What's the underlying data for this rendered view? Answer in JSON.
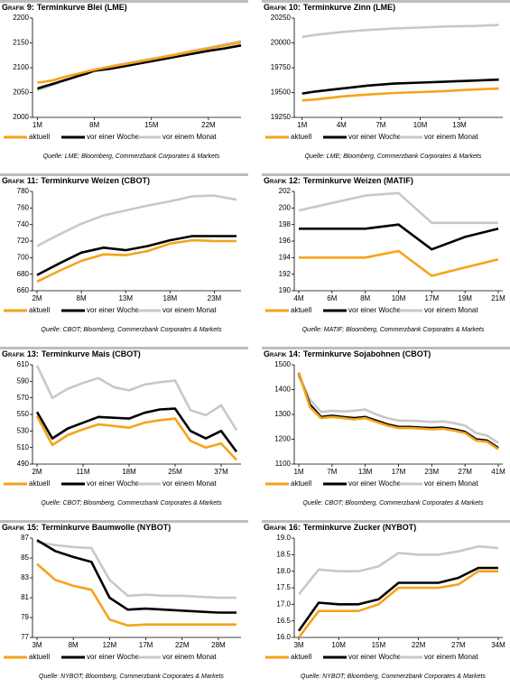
{
  "chart_data": [
    {
      "type": "line",
      "label": "Grafik 9:",
      "title": "Terminkurve Blei (LME)",
      "source": "Quelle: LME; Bloomberg, Commerzbank Corporates & Markets",
      "x": [
        1,
        2,
        3,
        4,
        5,
        6,
        7,
        8,
        9,
        10,
        12,
        14,
        16,
        18,
        20,
        22,
        24,
        26
      ],
      "xlim": [
        0.4,
        26
      ],
      "xticks": [
        {
          "value": 1,
          "label": "1M"
        },
        {
          "value": 8,
          "label": "8M"
        },
        {
          "value": 15,
          "label": "15M"
        },
        {
          "value": 22,
          "label": "22M"
        }
      ],
      "ylim": [
        2000,
        2200
      ],
      "yticks": [
        2000,
        2050,
        2100,
        2150,
        2200
      ],
      "series": [
        {
          "name": "aktuell",
          "color": "#f5a31a",
          "values": [
            2070,
            2072,
            2075,
            2080,
            2084,
            2088,
            2092,
            2096,
            2099,
            2102,
            2108,
            2114,
            2120,
            2126,
            2133,
            2139,
            2145,
            2151
          ]
        },
        {
          "name": "vor einer Woche",
          "color": "#000000",
          "values": [
            2058,
            2063,
            2068,
            2073,
            2078,
            2083,
            2088,
            2094,
            2096,
            2098,
            2104,
            2110,
            2116,
            2122,
            2128,
            2134,
            2139,
            2145
          ]
        },
        {
          "name": "vor einem Monat",
          "color": "#c8c8c8",
          "values": [
            2055,
            2060,
            2066,
            2072,
            2078,
            2084,
            2090,
            2095,
            2099,
            2103,
            2109,
            2115,
            2121,
            2127,
            2134,
            2140,
            2147,
            2154
          ]
        }
      ]
    },
    {
      "type": "line",
      "label": "Grafik 10:",
      "title": "Terminkurve Zinn (LME)",
      "source": "Quelle: LME; Bloomberg, Commerzbank Corporates & Markets",
      "x": [
        1,
        2,
        4,
        6,
        8,
        10,
        12,
        14,
        16
      ],
      "xlim": [
        0.4,
        16.3
      ],
      "xticks": [
        {
          "value": 1,
          "label": "1M"
        },
        {
          "value": 4,
          "label": "4M"
        },
        {
          "value": 7,
          "label": "7M"
        },
        {
          "value": 10,
          "label": "10M"
        },
        {
          "value": 13,
          "label": "13M"
        }
      ],
      "ylim": [
        19250,
        20250
      ],
      "yticks": [
        19250,
        19500,
        19750,
        20000,
        20250
      ],
      "series": [
        {
          "name": "aktuell",
          "color": "#f5a31a",
          "values": [
            19420,
            19430,
            19460,
            19480,
            19495,
            19505,
            19515,
            19530,
            19540
          ]
        },
        {
          "name": "vor einer Woche",
          "color": "#000000",
          "values": [
            19490,
            19510,
            19540,
            19570,
            19590,
            19600,
            19610,
            19620,
            19630
          ]
        },
        {
          "name": "vor einem Monat",
          "color": "#c8c8c8",
          "values": [
            20060,
            20080,
            20110,
            20130,
            20145,
            20155,
            20165,
            20170,
            20180
          ]
        }
      ]
    },
    {
      "type": "line",
      "label": "Grafik 11:",
      "title": "Terminkurve Weizen (CBOT)",
      "source": "Quelle: CBOT; Bloomberg, Commerzbank Corporates & Markets",
      "categories": [
        "2M",
        null,
        "8M",
        null,
        "13M",
        null,
        "18M",
        null,
        "23M",
        null
      ],
      "ylim": [
        660,
        780
      ],
      "yticks": [
        660,
        680,
        700,
        720,
        740,
        760,
        780
      ],
      "series": [
        {
          "name": "aktuell",
          "color": "#f5a31a",
          "values": [
            671,
            684,
            696,
            704,
            703,
            708,
            717,
            721,
            720,
            720
          ]
        },
        {
          "name": "vor einer Woche",
          "color": "#000000",
          "values": [
            679,
            693,
            706,
            712,
            709,
            714,
            721,
            726,
            726,
            726
          ]
        },
        {
          "name": "vor einem Monat",
          "color": "#c8c8c8",
          "values": [
            714,
            728,
            741,
            751,
            757,
            763,
            768,
            774,
            775,
            770
          ]
        }
      ]
    },
    {
      "type": "line",
      "label": "Grafik 12:",
      "title": "Terminkurve Weizen (MATIF)",
      "source": "Quelle: MATIF; Bloomberg, Commerzbank Corporates & Markets",
      "categories": [
        "4M",
        "6M",
        "8M",
        "10M",
        "17M",
        "19M",
        "21M"
      ],
      "ylim": [
        190,
        202
      ],
      "yticks": [
        190,
        192,
        194,
        196,
        198,
        200,
        202
      ],
      "series": [
        {
          "name": "aktuell",
          "color": "#f5a31a",
          "values": [
            194,
            194,
            194,
            194.8,
            191.8,
            192.8,
            193.8
          ]
        },
        {
          "name": "vor einer Woche",
          "color": "#000000",
          "values": [
            197.5,
            197.5,
            197.5,
            198,
            195,
            196.5,
            197.5
          ]
        },
        {
          "name": "vor einem Monat",
          "color": "#c8c8c8",
          "values": [
            199.7,
            200.6,
            201.5,
            201.8,
            198.2,
            198.2,
            198.2
          ]
        }
      ]
    },
    {
      "type": "line",
      "label": "Grafik 13:",
      "title": "Terminkurve Mais (CBOT)",
      "source": "Quelle: CBOT; Bloomberg, Commerzbank Corporates & Markets",
      "categories": [
        "2M",
        null,
        null,
        "11M",
        null,
        null,
        "18M",
        null,
        null,
        "25M",
        null,
        null,
        "37M",
        null
      ],
      "ylim": [
        490,
        610
      ],
      "yticks": [
        490,
        510,
        530,
        550,
        570,
        590,
        610
      ],
      "series": [
        {
          "name": "aktuell",
          "color": "#f5a31a",
          "values": [
            548,
            513,
            525,
            532,
            538,
            536,
            534,
            540,
            543,
            545,
            518,
            510,
            515,
            495
          ]
        },
        {
          "name": "vor einer Woche",
          "color": "#000000",
          "values": [
            553,
            521,
            533,
            540,
            547,
            546,
            545,
            552,
            556,
            557,
            530,
            521,
            530,
            505
          ]
        },
        {
          "name": "vor einem Monat",
          "color": "#c8c8c8",
          "values": [
            609,
            570,
            581,
            588,
            594,
            583,
            579,
            586,
            589,
            591,
            555,
            549,
            561,
            531
          ]
        }
      ]
    },
    {
      "type": "line",
      "label": "Grafik 14:",
      "title": "Terminkurve Sojabohnen (CBOT)",
      "source": "Quelle: CBOT; Bloomberg, Commerzbank Corporates & Markets",
      "categories": [
        "1M",
        null,
        null,
        "7M",
        null,
        null,
        "13M",
        null,
        null,
        "17M",
        null,
        null,
        "23M",
        null,
        null,
        "27M",
        null,
        null,
        "41M"
      ],
      "ylim": [
        1100,
        1500
      ],
      "yticks": [
        1100,
        1200,
        1300,
        1400,
        1500
      ],
      "series": [
        {
          "name": "aktuell",
          "color": "#f5a31a",
          "values": [
            1470,
            1330,
            1285,
            1290,
            1285,
            1280,
            1285,
            1270,
            1255,
            1245,
            1245,
            1243,
            1240,
            1242,
            1235,
            1225,
            1195,
            1190,
            1160
          ]
        },
        {
          "name": "vor einer Woche",
          "color": "#000000",
          "values": [
            1465,
            1340,
            1290,
            1295,
            1290,
            1285,
            1290,
            1275,
            1260,
            1250,
            1250,
            1247,
            1245,
            1247,
            1240,
            1230,
            1200,
            1195,
            1165
          ]
        },
        {
          "name": "vor einem Monat",
          "color": "#c8c8c8",
          "values": [
            1455,
            1360,
            1310,
            1315,
            1312,
            1315,
            1320,
            1300,
            1285,
            1275,
            1275,
            1273,
            1270,
            1272,
            1265,
            1255,
            1225,
            1215,
            1185
          ]
        }
      ]
    },
    {
      "type": "line",
      "label": "Grafik 15:",
      "title": "Terminkurve Baumwolle (NYBOT)",
      "source": "Quelle: NYBOT; Bloomberg, Commerzbank Corporates & Markets",
      "categories": [
        "3M",
        null,
        "8M",
        null,
        "12M",
        null,
        "17M",
        null,
        "22M",
        null,
        "28M",
        null
      ],
      "ylim": [
        77,
        87
      ],
      "yticks": [
        77,
        79,
        81,
        83,
        85,
        87
      ],
      "series": [
        {
          "name": "aktuell",
          "color": "#f5a31a",
          "values": [
            84.4,
            82.8,
            82.2,
            81.8,
            78.8,
            78.2,
            78.3,
            78.3,
            78.3,
            78.3,
            78.3,
            78.3
          ]
        },
        {
          "name": "vor einer Woche",
          "color": "#000000",
          "values": [
            86.8,
            85.7,
            85.1,
            84.6,
            81.0,
            79.8,
            79.9,
            79.8,
            79.7,
            79.6,
            79.5,
            79.5
          ]
        },
        {
          "name": "vor einem Monat",
          "color": "#c8c8c8",
          "values": [
            86.6,
            86.3,
            86.1,
            86.0,
            82.8,
            81.2,
            81.3,
            81.2,
            81.2,
            81.1,
            81.0,
            81.0
          ]
        }
      ]
    },
    {
      "type": "line",
      "label": "Grafik 16:",
      "title": "Terminkurve Zucker (NYBOT)",
      "source": "Quelle: NYBOT; Bloomberg, Commerzbank Corporates & Markets",
      "categories": [
        "3M",
        null,
        "10M",
        null,
        "15M",
        null,
        "22M",
        null,
        "27M",
        null,
        "34M"
      ],
      "ylim": [
        16,
        19
      ],
      "yticks": [
        {
          "value": 16,
          "label": "16.0"
        },
        {
          "value": 16.5,
          "label": "16.5"
        },
        {
          "value": 17,
          "label": "17.0"
        },
        {
          "value": 17.5,
          "label": "17.5"
        },
        {
          "value": 18,
          "label": "18.0"
        },
        {
          "value": 18.5,
          "label": "18.5"
        },
        {
          "value": 19,
          "label": "19.0"
        }
      ],
      "series": [
        {
          "name": "aktuell",
          "color": "#f5a31a",
          "values": [
            16.0,
            16.8,
            16.8,
            16.8,
            17.0,
            17.5,
            17.5,
            17.5,
            17.6,
            18.0,
            18.0
          ]
        },
        {
          "name": "vor einer Woche",
          "color": "#000000",
          "values": [
            16.2,
            17.05,
            17.0,
            17.0,
            17.15,
            17.65,
            17.65,
            17.65,
            17.8,
            18.1,
            18.1
          ]
        },
        {
          "name": "vor einem Monat",
          "color": "#c8c8c8",
          "values": [
            17.3,
            18.05,
            18.0,
            18.0,
            18.15,
            18.55,
            18.5,
            18.5,
            18.6,
            18.75,
            18.7
          ]
        }
      ]
    }
  ]
}
